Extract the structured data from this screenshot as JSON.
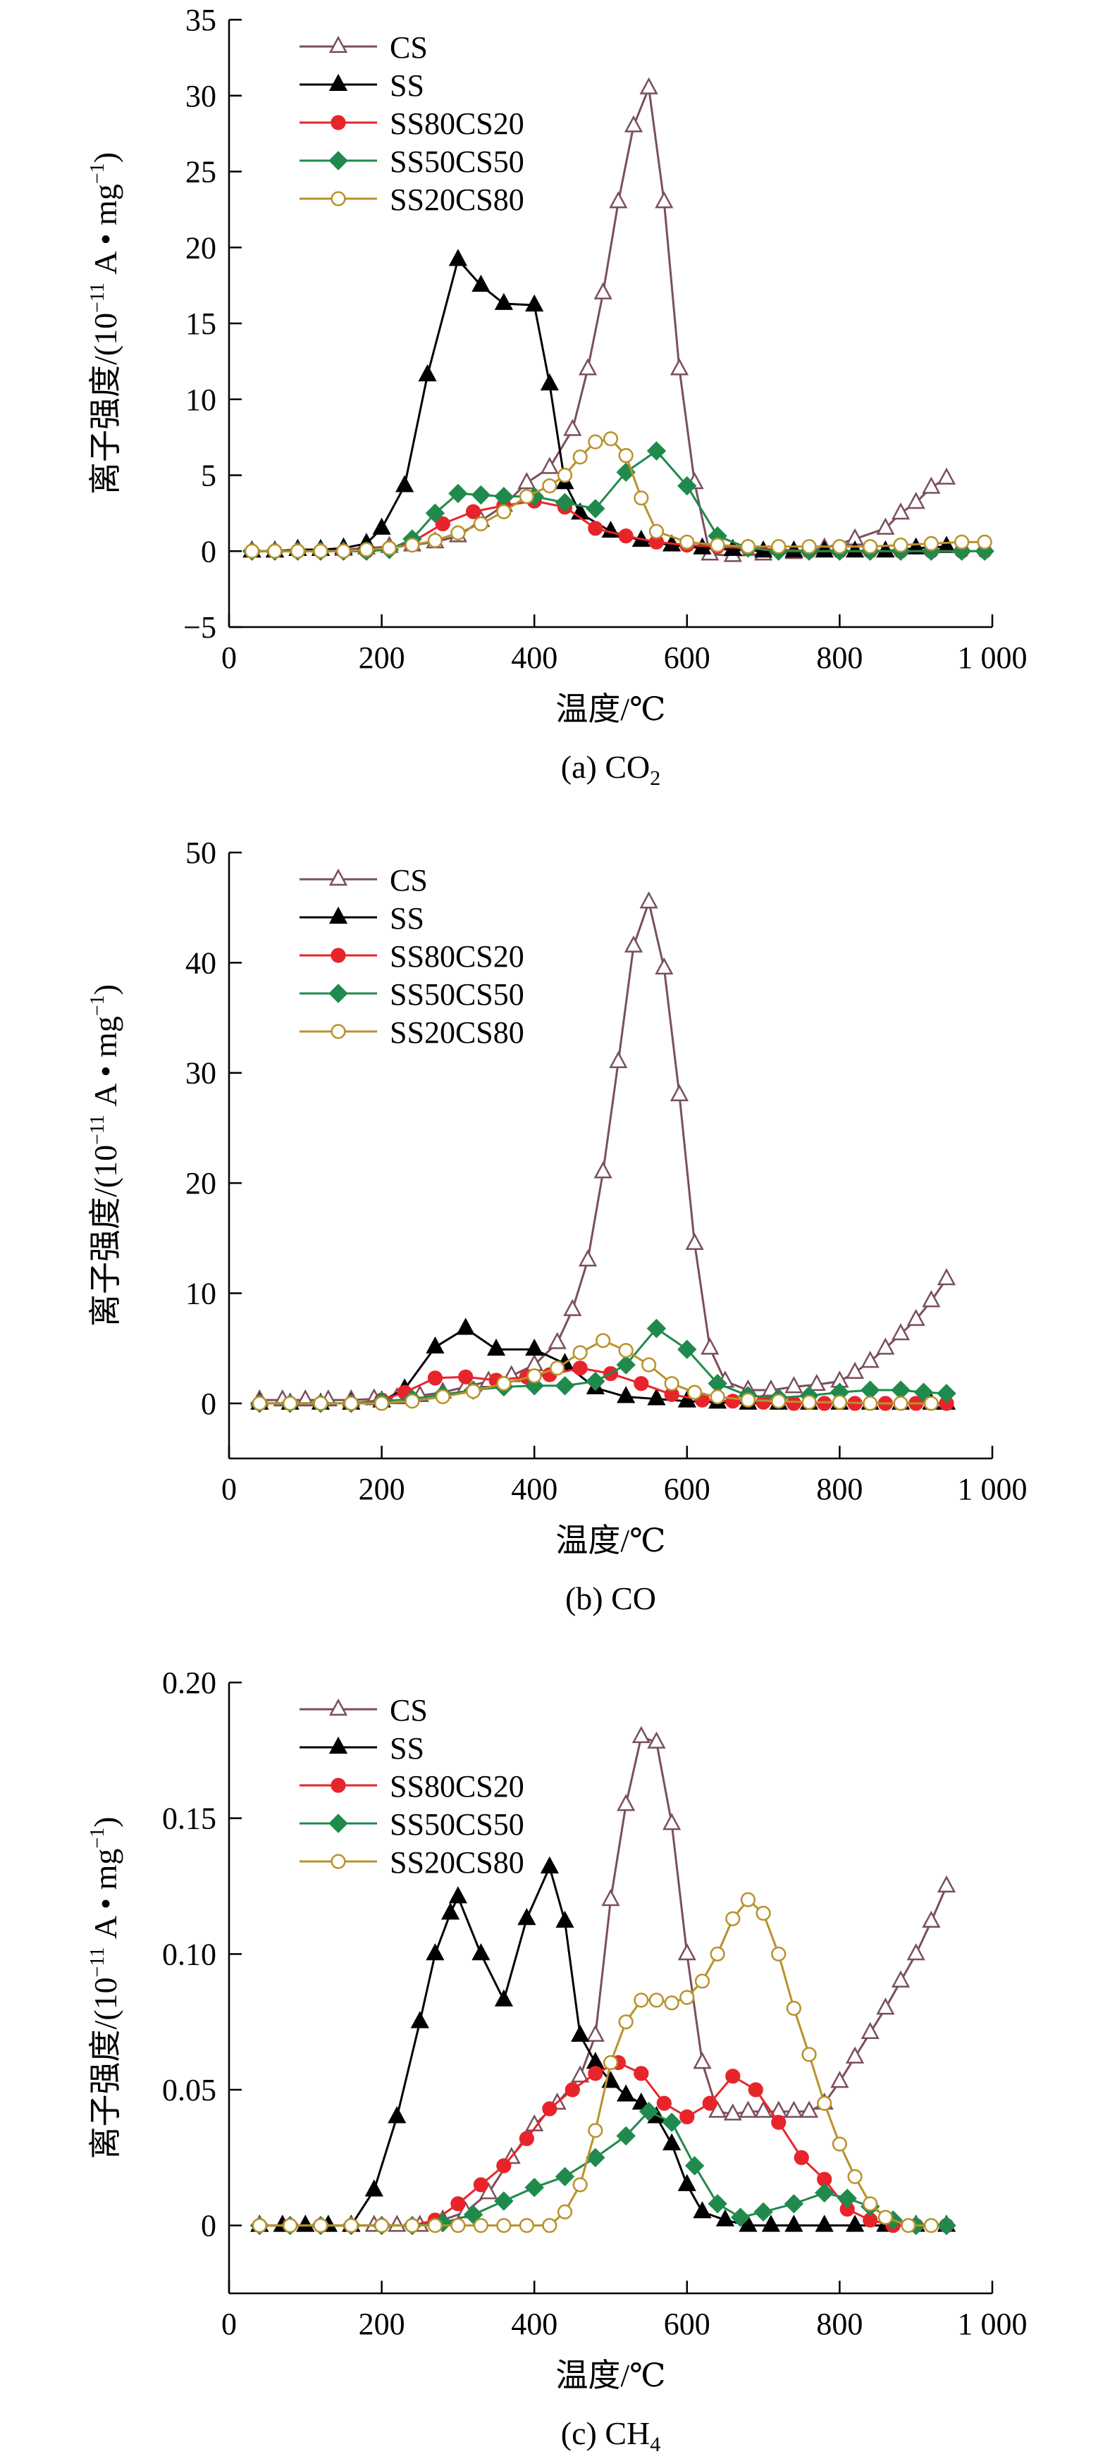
{
  "styles": {
    "CS": {
      "color": "#7a4f5c",
      "marker": "triangle-open"
    },
    "SS": {
      "color": "#000000",
      "marker": "triangle-filled"
    },
    "SS80CS20": {
      "color": "#e8242b",
      "marker": "circle-filled"
    },
    "SS50CS50": {
      "color": "#1f8a4c",
      "marker": "diamond-filled"
    },
    "SS20CS80": {
      "color": "#b8922a",
      "marker": "circle-open"
    }
  },
  "chart_data": [
    {
      "type": "line",
      "caption": "(a) CO",
      "caption_sub": "2",
      "xlabel": "温度/℃",
      "ylabel": "离子强度/(10",
      "ylabel_sup": "−11",
      "ylabel_tail": " A • mg",
      "ylabel_sup2": "−1",
      "ylabel_end": ")",
      "xlim": [
        0,
        1000
      ],
      "ylim": [
        -5,
        35
      ],
      "xticks": [
        0,
        200,
        400,
        600,
        800,
        1000
      ],
      "xtick_labels": [
        "0",
        "200",
        "400",
        "600",
        "800",
        "1 000"
      ],
      "yticks": [
        -5,
        0,
        5,
        10,
        15,
        20,
        25,
        30,
        35
      ],
      "ytick_labels": [
        "−5",
        "0",
        "5",
        "10",
        "15",
        "20",
        "25",
        "30",
        "35"
      ],
      "legend_position": "top-left",
      "series": [
        {
          "name": "CS",
          "x": [
            30,
            60,
            90,
            120,
            150,
            180,
            210,
            240,
            270,
            300,
            330,
            360,
            390,
            420,
            450,
            470,
            490,
            510,
            530,
            550,
            570,
            590,
            610,
            630,
            660,
            700,
            740,
            780,
            820,
            860,
            880,
            900,
            920,
            940
          ],
          "y": [
            0,
            0,
            0.1,
            0.1,
            0.1,
            0.2,
            0.3,
            0.4,
            0.6,
            1.0,
            2.0,
            3.0,
            4.5,
            5.5,
            8.0,
            12,
            17,
            23,
            28,
            30.5,
            23,
            12,
            4.5,
            -0.2,
            -0.3,
            -0.2,
            -0.1,
            0.2,
            0.8,
            1.5,
            2.5,
            3.2,
            4.2,
            4.8
          ]
        },
        {
          "name": "SS",
          "x": [
            30,
            60,
            90,
            120,
            150,
            180,
            200,
            230,
            260,
            300,
            330,
            360,
            400,
            420,
            440,
            460,
            500,
            540,
            580,
            620,
            660,
            700,
            740,
            780,
            820,
            860,
            900,
            940
          ],
          "y": [
            0,
            0,
            0.1,
            0.1,
            0.2,
            0.5,
            1.5,
            4.3,
            11.6,
            19.2,
            17.5,
            16.3,
            16.2,
            11.0,
            4.5,
            2.5,
            1.3,
            0.7,
            0.4,
            0.2,
            0.1,
            0,
            0,
            0,
            0,
            0,
            0.2,
            0.3
          ]
        },
        {
          "name": "SS80CS20",
          "x": [
            30,
            60,
            90,
            120,
            150,
            180,
            210,
            240,
            280,
            320,
            360,
            400,
            440,
            480,
            520,
            560,
            600,
            640,
            680,
            720,
            760,
            800,
            840,
            880,
            920,
            960,
            990
          ],
          "y": [
            0,
            0,
            0,
            0,
            0,
            0,
            0.2,
            0.6,
            1.8,
            2.6,
            3.0,
            3.3,
            2.9,
            1.5,
            1.0,
            0.6,
            0.4,
            0.3,
            0.2,
            0.1,
            0,
            0,
            0,
            0,
            0,
            0,
            0
          ]
        },
        {
          "name": "SS50CS50",
          "x": [
            30,
            60,
            90,
            120,
            150,
            180,
            210,
            240,
            270,
            300,
            330,
            360,
            400,
            440,
            480,
            520,
            560,
            600,
            640,
            680,
            720,
            760,
            800,
            840,
            880,
            920,
            960,
            990
          ],
          "y": [
            0,
            0,
            0,
            0,
            0,
            0,
            0.1,
            0.8,
            2.5,
            3.8,
            3.7,
            3.6,
            3.6,
            3.2,
            2.8,
            5.2,
            6.6,
            4.3,
            1.0,
            0.2,
            0,
            0,
            0,
            0,
            0,
            0,
            0,
            0
          ]
        },
        {
          "name": "SS20CS80",
          "x": [
            30,
            60,
            90,
            120,
            150,
            180,
            210,
            240,
            270,
            300,
            330,
            360,
            390,
            420,
            440,
            460,
            480,
            500,
            520,
            540,
            560,
            600,
            640,
            680,
            720,
            760,
            800,
            840,
            880,
            920,
            960,
            990
          ],
          "y": [
            0,
            0,
            0,
            0,
            0,
            0.1,
            0.2,
            0.4,
            0.7,
            1.2,
            1.8,
            2.6,
            3.6,
            4.3,
            5.0,
            6.2,
            7.2,
            7.4,
            6.3,
            3.5,
            1.3,
            0.6,
            0.4,
            0.3,
            0.3,
            0.3,
            0.3,
            0.3,
            0.4,
            0.5,
            0.6,
            0.6
          ]
        }
      ]
    },
    {
      "type": "line",
      "caption": "(b) CO",
      "caption_sub": "",
      "xlabel": "温度/℃",
      "ylabel": "离子强度/(10",
      "ylabel_sup": "−11",
      "ylabel_tail": " A • mg",
      "ylabel_sup2": "−1",
      "ylabel_end": ")",
      "xlim": [
        0,
        1000
      ],
      "ylim": [
        -5,
        50
      ],
      "xticks": [
        0,
        200,
        400,
        600,
        800,
        1000
      ],
      "xtick_labels": [
        "0",
        "200",
        "400",
        "600",
        "800",
        "1 000"
      ],
      "yticks": [
        0,
        10,
        20,
        30,
        40,
        50
      ],
      "ytick_labels": [
        "0",
        "10",
        "20",
        "30",
        "40",
        "50"
      ],
      "legend_position": "top-left",
      "series": [
        {
          "name": "CS",
          "x": [
            40,
            70,
            100,
            130,
            160,
            190,
            220,
            250,
            280,
            310,
            340,
            370,
            400,
            430,
            450,
            470,
            490,
            510,
            530,
            550,
            570,
            590,
            610,
            630,
            650,
            680,
            710,
            740,
            770,
            800,
            820,
            840,
            860,
            880,
            900,
            920,
            940
          ],
          "y": [
            0.3,
            0.3,
            0.3,
            0.3,
            0.3,
            0.4,
            0.5,
            0.7,
            1.0,
            1.5,
            2.0,
            2.5,
            3.5,
            5.5,
            8.5,
            13,
            21,
            31,
            41.5,
            45.5,
            39.5,
            28,
            14.5,
            5,
            2,
            1.2,
            1.2,
            1.5,
            1.7,
            2.0,
            2.8,
            3.8,
            5,
            6.3,
            7.6,
            9.3,
            11.3
          ]
        },
        {
          "name": "SS",
          "x": [
            40,
            80,
            120,
            160,
            200,
            230,
            270,
            310,
            350,
            400,
            440,
            480,
            520,
            560,
            600,
            640,
            680,
            720,
            760,
            800,
            840,
            880,
            920,
            940
          ],
          "y": [
            0,
            0,
            0,
            0,
            0.2,
            1.3,
            5.1,
            6.8,
            4.9,
            4.9,
            3.6,
            1.4,
            0.6,
            0.4,
            0.2,
            0.1,
            0,
            0,
            0,
            0,
            0,
            0,
            0,
            0
          ]
        },
        {
          "name": "SS80CS20",
          "x": [
            40,
            80,
            120,
            160,
            200,
            230,
            270,
            310,
            350,
            390,
            420,
            460,
            500,
            540,
            580,
            620,
            660,
            700,
            740,
            780,
            820,
            860,
            900,
            940
          ],
          "y": [
            0,
            0,
            0,
            0,
            0.3,
            1.0,
            2.3,
            2.4,
            2.1,
            2.4,
            2.6,
            3.2,
            2.7,
            1.8,
            0.8,
            0.3,
            0.2,
            0.1,
            0,
            0,
            0,
            0,
            0,
            0
          ]
        },
        {
          "name": "SS50CS50",
          "x": [
            40,
            80,
            120,
            160,
            200,
            240,
            280,
            320,
            360,
            400,
            440,
            480,
            520,
            560,
            600,
            640,
            680,
            720,
            760,
            800,
            840,
            880,
            910,
            940
          ],
          "y": [
            0,
            0,
            0,
            0,
            0.2,
            0.4,
            0.8,
            1.2,
            1.5,
            1.6,
            1.6,
            2.0,
            3.5,
            6.8,
            4.9,
            1.8,
            0.7,
            0.5,
            0.7,
            1.0,
            1.2,
            1.2,
            1.0,
            0.9
          ]
        },
        {
          "name": "SS20CS80",
          "x": [
            40,
            80,
            120,
            160,
            200,
            240,
            280,
            320,
            360,
            400,
            430,
            460,
            490,
            520,
            550,
            580,
            610,
            640,
            680,
            720,
            760,
            800,
            840,
            880,
            920
          ],
          "y": [
            0,
            0,
            0,
            0,
            0,
            0.2,
            0.6,
            1.1,
            1.8,
            2.5,
            3.2,
            4.6,
            5.7,
            4.8,
            3.5,
            1.8,
            1.0,
            0.6,
            0.3,
            0.2,
            0.1,
            0.1,
            0,
            0,
            0
          ]
        }
      ]
    },
    {
      "type": "line",
      "caption": "(c) CH",
      "caption_sub": "4",
      "xlabel": "温度/℃",
      "ylabel": "离子强度/(10",
      "ylabel_sup": "−11",
      "ylabel_tail": " A • mg",
      "ylabel_sup2": "−1",
      "ylabel_end": ")",
      "xlim": [
        0,
        1000
      ],
      "ylim": [
        -0.025,
        0.2
      ],
      "xticks": [
        0,
        200,
        400,
        600,
        800,
        1000
      ],
      "xtick_labels": [
        "0",
        "200",
        "400",
        "600",
        "800",
        "1 000"
      ],
      "yticks": [
        0,
        0.05,
        0.1,
        0.15,
        0.2
      ],
      "ytick_labels": [
        "0",
        "0.05",
        "0.10",
        "0.15",
        "0.20"
      ],
      "legend_position": "top-left",
      "series": [
        {
          "name": "CS",
          "x": [
            40,
            70,
            100,
            130,
            160,
            190,
            220,
            250,
            280,
            310,
            340,
            370,
            400,
            430,
            460,
            480,
            500,
            520,
            540,
            560,
            580,
            600,
            620,
            640,
            660,
            680,
            700,
            720,
            740,
            760,
            780,
            800,
            820,
            840,
            860,
            880,
            900,
            920,
            940
          ],
          "y": [
            0,
            0,
            0,
            0,
            0,
            0,
            0,
            0,
            0.002,
            0.005,
            0.012,
            0.025,
            0.037,
            0.045,
            0.055,
            0.07,
            0.12,
            0.155,
            0.18,
            0.178,
            0.148,
            0.1,
            0.06,
            0.042,
            0.041,
            0.042,
            0.042,
            0.042,
            0.042,
            0.042,
            0.045,
            0.053,
            0.062,
            0.071,
            0.08,
            0.09,
            0.1,
            0.112,
            0.125
          ]
        },
        {
          "name": "SS",
          "x": [
            40,
            70,
            100,
            130,
            160,
            190,
            220,
            250,
            270,
            290,
            300,
            330,
            360,
            390,
            420,
            440,
            460,
            480,
            500,
            520,
            540,
            560,
            580,
            600,
            620,
            650,
            680,
            710,
            740,
            780,
            820,
            860,
            900,
            940
          ],
          "y": [
            0,
            0,
            0,
            0,
            0,
            0.013,
            0.04,
            0.075,
            0.1,
            0.115,
            0.121,
            0.1,
            0.083,
            0.113,
            0.132,
            0.112,
            0.07,
            0.06,
            0.053,
            0.048,
            0.045,
            0.04,
            0.03,
            0.015,
            0.005,
            0.002,
            0,
            0,
            0,
            0,
            0,
            0,
            0,
            0
          ]
        },
        {
          "name": "SS80CS20",
          "x": [
            40,
            80,
            120,
            160,
            200,
            240,
            270,
            300,
            330,
            360,
            390,
            420,
            450,
            480,
            510,
            540,
            570,
            600,
            630,
            660,
            690,
            720,
            750,
            780,
            810,
            840,
            870,
            900,
            940
          ],
          "y": [
            0,
            0,
            0,
            0,
            0,
            0,
            0.002,
            0.008,
            0.015,
            0.022,
            0.032,
            0.043,
            0.05,
            0.056,
            0.06,
            0.056,
            0.045,
            0.04,
            0.045,
            0.055,
            0.05,
            0.038,
            0.025,
            0.017,
            0.006,
            0.002,
            0,
            0,
            0
          ]
        },
        {
          "name": "SS50CS50",
          "x": [
            40,
            80,
            120,
            160,
            200,
            240,
            280,
            320,
            360,
            400,
            440,
            480,
            520,
            550,
            580,
            610,
            640,
            670,
            700,
            740,
            780,
            810,
            840,
            870,
            900,
            940
          ],
          "y": [
            0,
            0,
            0,
            0,
            0,
            0,
            0.001,
            0.004,
            0.009,
            0.014,
            0.018,
            0.025,
            0.033,
            0.042,
            0.038,
            0.022,
            0.008,
            0.003,
            0.005,
            0.008,
            0.012,
            0.01,
            0.007,
            0.002,
            0,
            0
          ]
        },
        {
          "name": "SS20CS80",
          "x": [
            40,
            80,
            120,
            160,
            200,
            240,
            270,
            300,
            330,
            360,
            390,
            420,
            440,
            460,
            480,
            500,
            520,
            540,
            560,
            580,
            600,
            620,
            640,
            660,
            680,
            700,
            720,
            740,
            760,
            780,
            800,
            820,
            840,
            860,
            890,
            920
          ],
          "y": [
            0,
            0,
            0,
            0,
            0,
            0,
            0,
            0,
            0,
            0,
            0,
            0,
            0.005,
            0.015,
            0.035,
            0.06,
            0.075,
            0.083,
            0.083,
            0.082,
            0.084,
            0.09,
            0.1,
            0.113,
            0.12,
            0.115,
            0.1,
            0.08,
            0.063,
            0.045,
            0.03,
            0.018,
            0.008,
            0.003,
            0,
            0
          ]
        }
      ]
    }
  ]
}
